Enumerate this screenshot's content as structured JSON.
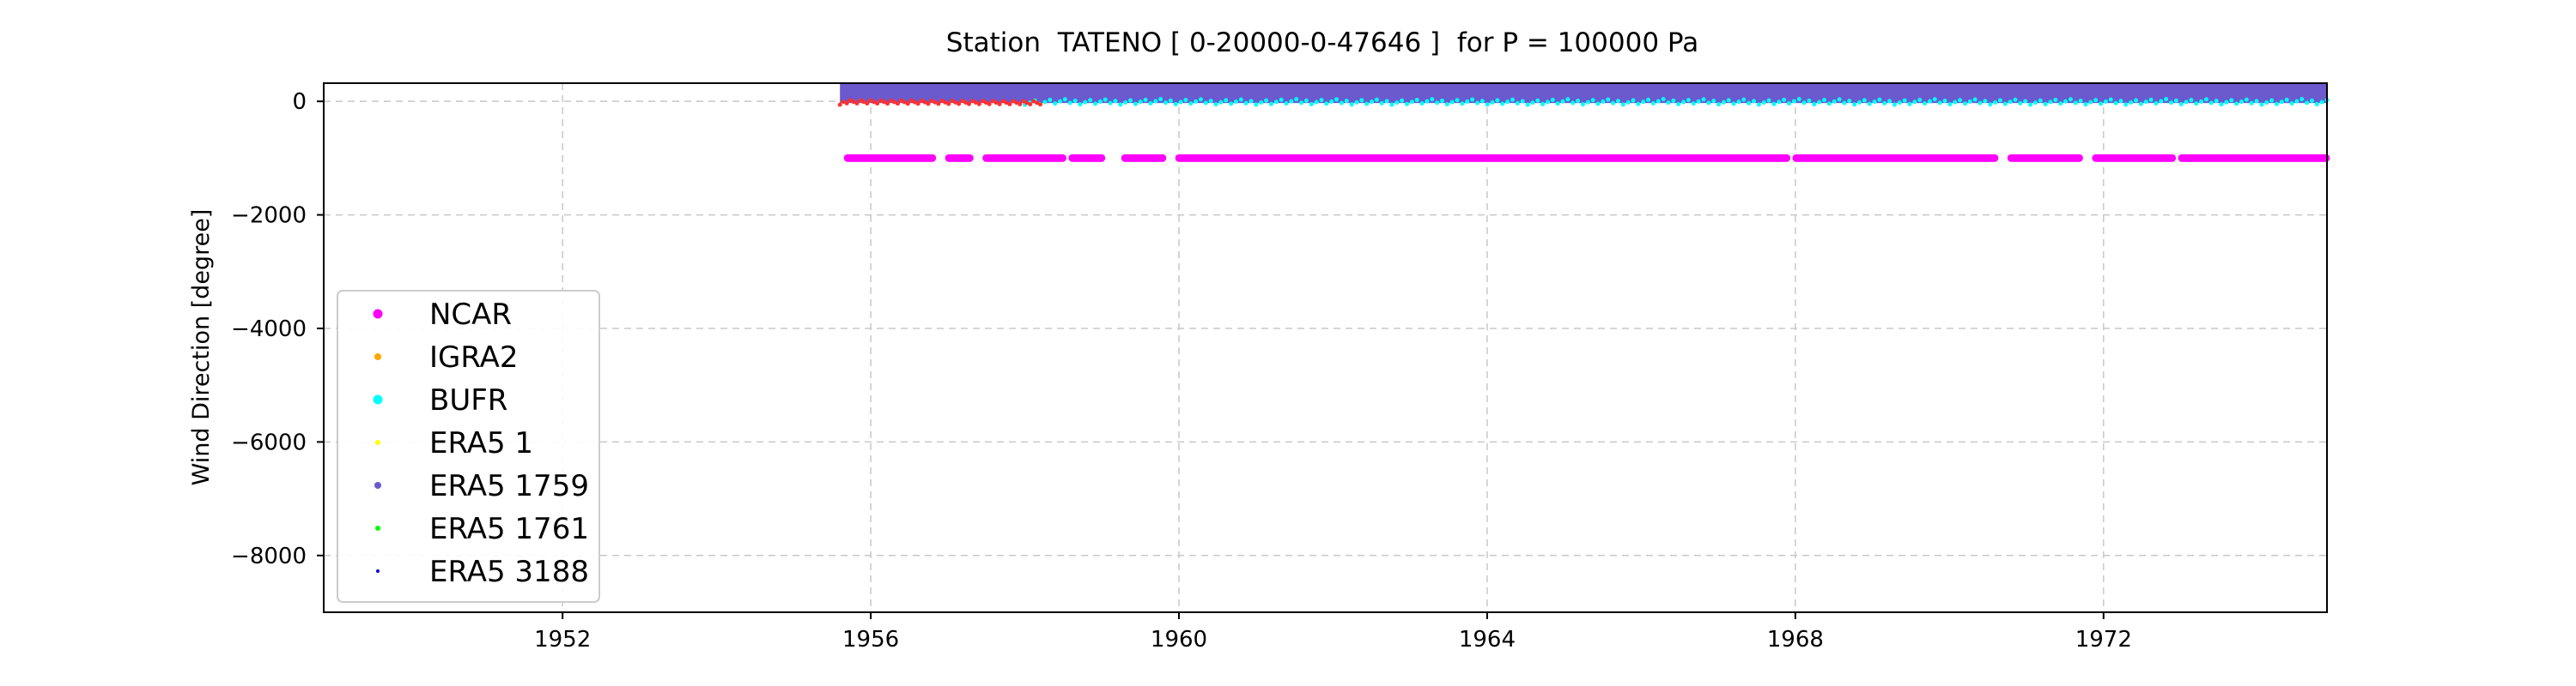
{
  "chart_data": {
    "type": "scatter",
    "title": "Station  TATENO [ 0-20000-0-47646 ]  for P = 100000 Pa",
    "xlabel": "",
    "ylabel": "Wind Direction [degree]",
    "xlim": [
      1948.9,
      1974.9
    ],
    "ylim": [
      -9000,
      320
    ],
    "x_ticks": [
      1952,
      1956,
      1960,
      1964,
      1968,
      1972
    ],
    "x_tick_labels": [
      "1952",
      "1956",
      "1960",
      "1964",
      "1968",
      "1972"
    ],
    "y_ticks": [
      0,
      -2000,
      -4000,
      -6000,
      -8000
    ],
    "y_tick_labels": [
      "0",
      "−2000",
      "−4000",
      "−6000",
      "−8000"
    ],
    "grid": true,
    "legend_position": "lower-left",
    "series": [
      {
        "name": "NCAR",
        "color": "#ff00ff",
        "marker_size": "large",
        "x_range": [
          1955.7,
          1974.9
        ],
        "y_values": [
          -999
        ],
        "gaps": [
          [
            1956.8,
            1957.0
          ],
          [
            1957.3,
            1957.5
          ],
          [
            1958.5,
            1958.6
          ],
          [
            1959.0,
            1959.3
          ],
          [
            1959.8,
            1960.0
          ],
          [
            1967.9,
            1968.0
          ],
          [
            1970.6,
            1970.8
          ],
          [
            1971.7,
            1971.9
          ],
          [
            1972.9,
            1973.0
          ]
        ]
      },
      {
        "name": "IGRA2",
        "color": "#ffa500",
        "marker_size": "medium"
      },
      {
        "name": "BUFR",
        "color": "#00ffff",
        "marker_size": "large",
        "x_range": [
          1958.0,
          1974.9
        ],
        "y_range": [
          -60,
          40
        ]
      },
      {
        "name": "ERA5 1",
        "color": "#ffff00",
        "marker_size": "small"
      },
      {
        "name": "ERA5 1759",
        "color": "#6a5acd",
        "marker_size": "medium",
        "x_range": [
          1955.6,
          1974.9
        ],
        "y_range": [
          0,
          360
        ]
      },
      {
        "name": "ERA5 1761",
        "color": "#00ff00",
        "marker_size": "small"
      },
      {
        "name": "ERA5 3188",
        "color": "#0000cd",
        "marker_size": "tiny"
      }
    ],
    "extra_marks": {
      "red_points": {
        "color": "#ff3030",
        "x_range": [
          1955.6,
          1958.2
        ],
        "y_range": [
          -60,
          20
        ]
      }
    }
  }
}
